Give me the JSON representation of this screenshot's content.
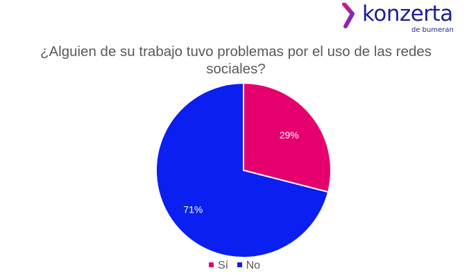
{
  "logo": {
    "name": "konzerta",
    "tagline": "de bumeran",
    "colors": [
      "#e0157a",
      "#5b2fd1",
      "#1c1f8f"
    ]
  },
  "chart_data": {
    "type": "pie",
    "title": "¿Alguien de su trabajo tuvo problemas por el uso de las redes sociales?",
    "slices": [
      {
        "label": "Sí",
        "value": 29,
        "display": "29%",
        "color": "#e6006e"
      },
      {
        "label": "No",
        "value": 71,
        "display": "71%",
        "color": "#0b1ff0"
      }
    ],
    "legend_position": "bottom",
    "start_angle": "12 o'clock, clockwise"
  }
}
